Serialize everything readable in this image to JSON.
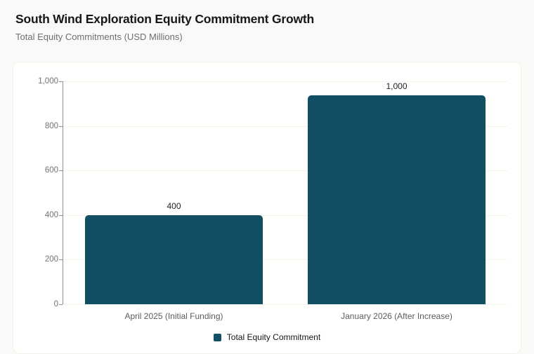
{
  "header": {
    "title": "South Wind Exploration Equity Commitment Growth",
    "subtitle": "Total Equity Commitments (USD Millions)"
  },
  "chart_data": {
    "type": "bar",
    "title": "South Wind Exploration Equity Commitment Growth",
    "subtitle": "Total Equity Commitments (USD Millions)",
    "categories": [
      "April 2025 (Initial Funding)",
      "January 2026 (After Increase)"
    ],
    "series": [
      {
        "name": "Total Equity Commitment",
        "values": [
          400,
          1000
        ]
      }
    ],
    "value_labels": [
      "400",
      "1,000"
    ],
    "yticks": [
      0,
      200,
      400,
      600,
      800,
      1000
    ],
    "ytick_labels": [
      "0",
      "200",
      "400",
      "600",
      "800",
      "1,000"
    ],
    "ylim": [
      0,
      1000
    ],
    "grid": true,
    "legend_position": "bottom",
    "legend_label": "Total Equity Commitment",
    "colors": {
      "bar": "#124f64",
      "axis": "#90909a",
      "grid": "#f3f3f0",
      "page_bg": "#f9f9f7",
      "card_bg": "#fffffe"
    }
  }
}
